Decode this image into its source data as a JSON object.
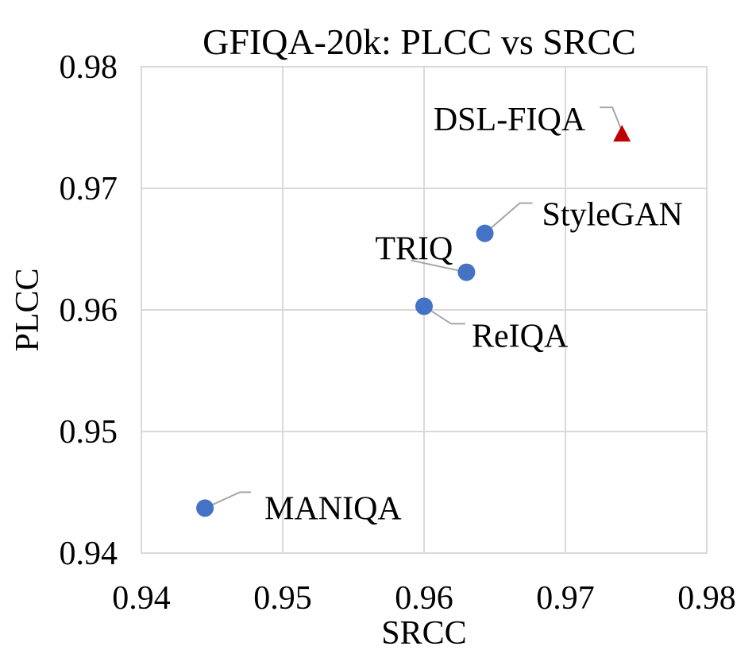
{
  "chart_data": {
    "type": "scatter",
    "title": "GFIQA-20k: PLCC vs SRCC",
    "xlabel": "SRCC",
    "ylabel": "PLCC",
    "xlim": [
      0.94,
      0.98
    ],
    "ylim": [
      0.94,
      0.98
    ],
    "x_ticks": [
      "0.94",
      "0.95",
      "0.96",
      "0.97",
      "0.98"
    ],
    "y_ticks": [
      "0.94",
      "0.95",
      "0.96",
      "0.97",
      "0.98"
    ],
    "grid": true,
    "points": [
      {
        "label": "MANIQA",
        "x": 0.9445,
        "y": 0.9437,
        "marker": "circle",
        "color": "#4472c4"
      },
      {
        "label": "ReIQA",
        "x": 0.96,
        "y": 0.9603,
        "marker": "circle",
        "color": "#4472c4"
      },
      {
        "label": "TRIQ",
        "x": 0.963,
        "y": 0.9631,
        "marker": "circle",
        "color": "#4472c4"
      },
      {
        "label": "StyleGAN",
        "x": 0.9643,
        "y": 0.9663,
        "marker": "circle",
        "color": "#4472c4"
      },
      {
        "label": "DSL-FIQA",
        "x": 0.974,
        "y": 0.9745,
        "marker": "triangle",
        "color": "#c00000"
      }
    ]
  }
}
